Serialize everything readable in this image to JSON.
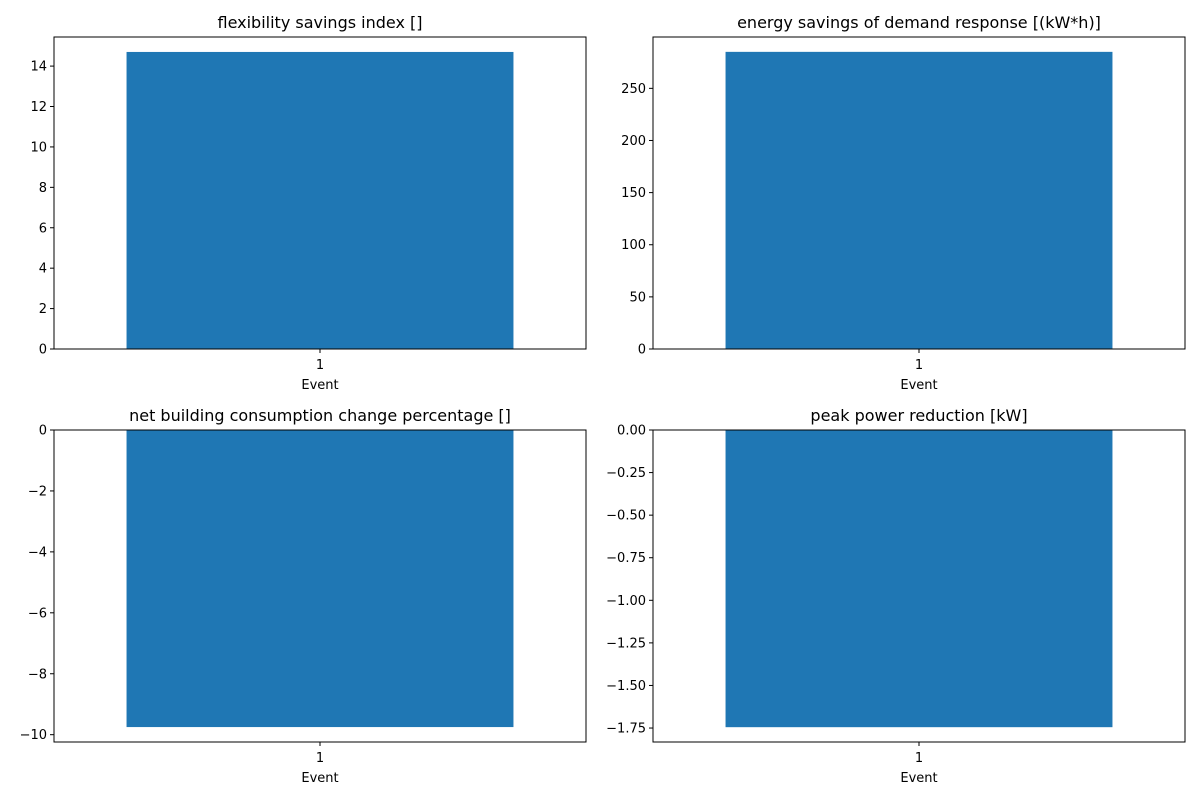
{
  "chart_data": [
    {
      "type": "bar",
      "title": "flexibility savings index []",
      "xlabel": "Event",
      "ylabel": "",
      "categories": [
        "1"
      ],
      "values": [
        14.7
      ],
      "ylim": [
        0,
        15.44
      ],
      "yticks": [
        0,
        2,
        4,
        6,
        8,
        10,
        12,
        14
      ],
      "ytick_labels": [
        "0",
        "2",
        "4",
        "6",
        "8",
        "10",
        "12",
        "14"
      ],
      "grid": false,
      "legend": "none",
      "bar_color": "#1f77b4"
    },
    {
      "type": "bar",
      "title": "energy savings of demand response [(kW*h)]",
      "xlabel": "Event",
      "ylabel": "",
      "categories": [
        "1"
      ],
      "values": [
        285
      ],
      "ylim": [
        0,
        299.25
      ],
      "yticks": [
        0,
        50,
        100,
        150,
        200,
        250
      ],
      "ytick_labels": [
        "0",
        "50",
        "100",
        "150",
        "200",
        "250"
      ],
      "grid": false,
      "legend": "none",
      "bar_color": "#1f77b4"
    },
    {
      "type": "bar",
      "title": "net building consumption change percentage []",
      "xlabel": "Event",
      "ylabel": "",
      "categories": [
        "1"
      ],
      "values": [
        -9.75
      ],
      "ylim": [
        -10.24,
        0
      ],
      "yticks": [
        0,
        -2,
        -4,
        -6,
        -8,
        -10
      ],
      "ytick_labels": [
        "0",
        "−2",
        "−4",
        "−6",
        "−8",
        "−10"
      ],
      "grid": false,
      "legend": "none",
      "bar_color": "#1f77b4"
    },
    {
      "type": "bar",
      "title": "peak power reduction [kW]",
      "xlabel": "Event",
      "ylabel": "",
      "categories": [
        "1"
      ],
      "values": [
        -1.745
      ],
      "ylim": [
        -1.832,
        0
      ],
      "yticks": [
        0,
        -0.25,
        -0.5,
        -0.75,
        -1.0,
        -1.25,
        -1.5,
        -1.75
      ],
      "ytick_labels": [
        "0.00",
        "−0.25",
        "−0.50",
        "−0.75",
        "−1.00",
        "−1.25",
        "−1.50",
        "−1.75"
      ],
      "grid": false,
      "legend": "none",
      "bar_color": "#1f77b4"
    }
  ]
}
